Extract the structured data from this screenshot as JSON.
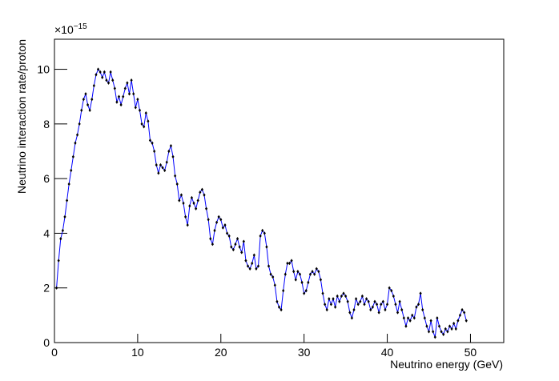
{
  "chart_data": {
    "type": "line",
    "x_label": "Neutrino energy (GeV)",
    "y_label": "Neutrino interaction rate/proton",
    "y_multiplier": {
      "base": "×10",
      "exponent": "−15"
    },
    "x": [
      0.25,
      0.5,
      0.75,
      1,
      1.25,
      1.5,
      1.75,
      2,
      2.25,
      2.5,
      2.75,
      3,
      3.25,
      3.5,
      3.75,
      4,
      4.25,
      4.5,
      4.75,
      5,
      5.25,
      5.5,
      5.75,
      6,
      6.25,
      6.5,
      6.75,
      7,
      7.25,
      7.5,
      7.75,
      8,
      8.25,
      8.5,
      8.75,
      9,
      9.25,
      9.5,
      9.75,
      10,
      10.25,
      10.5,
      10.75,
      11,
      11.25,
      11.5,
      11.75,
      12,
      12.25,
      12.5,
      12.75,
      13,
      13.25,
      13.5,
      13.75,
      14,
      14.25,
      14.5,
      14.75,
      15,
      15.25,
      15.5,
      15.75,
      16,
      16.25,
      16.5,
      16.75,
      17,
      17.25,
      17.5,
      17.75,
      18,
      18.25,
      18.5,
      18.75,
      19,
      19.25,
      19.5,
      19.75,
      20,
      20.25,
      20.5,
      20.75,
      21,
      21.25,
      21.5,
      21.75,
      22,
      22.25,
      22.5,
      22.75,
      23,
      23.25,
      23.5,
      23.75,
      24,
      24.25,
      24.5,
      24.75,
      25,
      25.25,
      25.5,
      25.75,
      26,
      26.25,
      26.5,
      26.75,
      27,
      27.25,
      27.5,
      27.75,
      28,
      28.25,
      28.5,
      28.75,
      29,
      29.25,
      29.5,
      29.75,
      30,
      30.25,
      30.5,
      30.75,
      31,
      31.25,
      31.5,
      31.75,
      32,
      32.25,
      32.5,
      32.75,
      33,
      33.25,
      33.5,
      33.75,
      34,
      34.25,
      34.5,
      34.75,
      35,
      35.25,
      35.5,
      35.75,
      36,
      36.25,
      36.5,
      36.75,
      37,
      37.25,
      37.5,
      37.75,
      38,
      38.25,
      38.5,
      38.75,
      39,
      39.25,
      39.5,
      39.75,
      40,
      40.25,
      40.5,
      40.75,
      41,
      41.25,
      41.5,
      41.75,
      42,
      42.25,
      42.5,
      42.75,
      43,
      43.25,
      43.5,
      43.75,
      44,
      44.25,
      44.5,
      44.75,
      45,
      45.25,
      45.5,
      45.75,
      46,
      46.25,
      46.5,
      46.75,
      47,
      47.25,
      47.5,
      47.75,
      48,
      48.25,
      48.5,
      48.75,
      49,
      49.25,
      49.5
    ],
    "values": [
      2.0,
      3.0,
      3.8,
      4.1,
      4.6,
      5.2,
      5.8,
      6.3,
      6.8,
      7.3,
      7.6,
      8.0,
      8.5,
      8.9,
      9.1,
      8.7,
      8.5,
      8.9,
      9.4,
      9.8,
      10.0,
      9.9,
      9.7,
      9.9,
      9.6,
      9.5,
      9.9,
      9.6,
      9.3,
      8.8,
      9.0,
      8.7,
      9.0,
      9.3,
      9.5,
      9.1,
      9.6,
      9.1,
      8.6,
      8.9,
      8.5,
      8.0,
      7.9,
      8.4,
      8.1,
      7.4,
      7.3,
      7.0,
      6.5,
      6.2,
      6.5,
      6.4,
      6.3,
      6.6,
      7.0,
      7.2,
      6.8,
      6.1,
      5.8,
      5.2,
      5.4,
      5.1,
      4.6,
      4.3,
      5.0,
      5.3,
      5.1,
      4.9,
      5.2,
      5.5,
      5.6,
      5.4,
      4.9,
      4.5,
      3.8,
      3.6,
      4.1,
      4.4,
      4.6,
      4.5,
      4.2,
      4.3,
      4.0,
      3.9,
      3.5,
      3.4,
      3.6,
      3.8,
      3.5,
      3.3,
      3.7,
      3.0,
      2.8,
      2.7,
      2.9,
      3.2,
      2.7,
      2.8,
      3.9,
      4.1,
      4.0,
      3.5,
      2.8,
      2.5,
      2.4,
      2.1,
      1.5,
      1.3,
      1.2,
      1.9,
      2.5,
      2.9,
      2.9,
      3.0,
      2.6,
      2.3,
      2.6,
      2.5,
      2.2,
      1.8,
      1.9,
      2.2,
      2.5,
      2.6,
      2.5,
      2.7,
      2.6,
      2.3,
      1.8,
      1.4,
      1.2,
      1.6,
      1.4,
      1.6,
      1.3,
      1.7,
      1.5,
      1.7,
      1.8,
      1.7,
      1.5,
      1.1,
      0.9,
      1.2,
      1.6,
      1.4,
      1.5,
      1.7,
      1.4,
      1.6,
      1.5,
      1.2,
      1.3,
      1.5,
      1.4,
      1.1,
      1.4,
      1.5,
      1.2,
      1.4,
      2.0,
      1.9,
      1.7,
      1.4,
      1.1,
      1.5,
      1.2,
      0.9,
      0.6,
      0.9,
      0.8,
      1.0,
      0.9,
      1.3,
      1.4,
      1.8,
      1.2,
      0.9,
      0.6,
      0.4,
      0.8,
      0.4,
      0.2,
      0.9,
      0.6,
      0.4,
      0.3,
      0.5,
      0.4,
      0.6,
      0.5,
      0.7,
      0.5,
      0.8,
      1.0,
      1.2,
      1.1,
      0.8
    ],
    "line_color": "#0000ff",
    "marker_color": "#000000",
    "xlim": [
      0,
      54
    ],
    "ylim": [
      0,
      11.1
    ],
    "xticks": [
      0,
      10,
      20,
      30,
      40,
      50
    ],
    "yticks": [
      0,
      2,
      4,
      6,
      8,
      10
    ]
  }
}
